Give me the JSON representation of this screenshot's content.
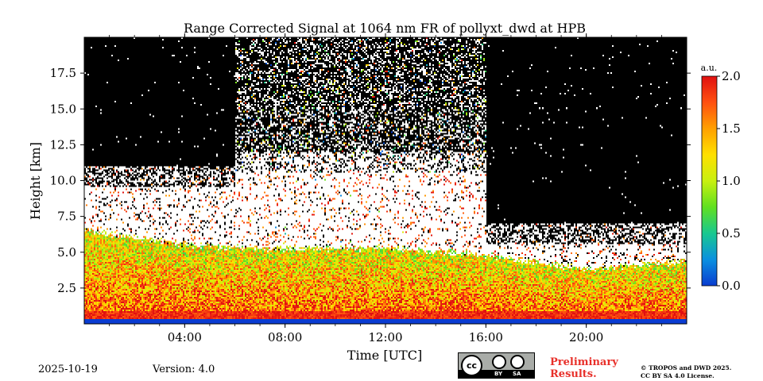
{
  "chart_data": {
    "type": "heatmap",
    "title": "Range Corrected Signal at 1064 nm FR of pollyxt_dwd at HPB",
    "xlabel": "Time [UTC]",
    "ylabel": "Height [km]",
    "xlim": [
      0,
      24
    ],
    "ylim": [
      0,
      20
    ],
    "x_ticks": [
      4,
      8,
      12,
      16,
      20
    ],
    "x_tick_labels": [
      "04:00",
      "08:00",
      "12:00",
      "16:00",
      "20:00"
    ],
    "y_ticks": [
      2.5,
      5.0,
      7.5,
      10.0,
      12.5,
      15.0,
      17.5
    ],
    "y_tick_labels": [
      "2.5",
      "5.0",
      "7.5",
      "10.0",
      "12.5",
      "15.0",
      "17.5"
    ],
    "colorbar": {
      "label": "a.u.",
      "min": 0.0,
      "max": 2.0,
      "ticks": [
        0.0,
        0.5,
        1.0,
        1.5,
        2.0
      ],
      "tick_labels": [
        "0.0",
        "0.5",
        "1.0",
        "1.5",
        "2.0"
      ],
      "colormap": [
        "#0a3cd0",
        "#0a90e0",
        "#18c890",
        "#60e020",
        "#c8f010",
        "#ffe000",
        "#ffa000",
        "#ff5010",
        "#e01010"
      ]
    },
    "background_color": "#000000",
    "saturation_color": "#ffffff",
    "cloud_layers": [
      {
        "description": "white",
        "regions": [
          {
            "t0": 0.0,
            "t1": 6.0,
            "h_top": 11.0,
            "h_bottom": 6.0
          },
          {
            "t0": 6.0,
            "t1": 16.0,
            "h_top": 12.0,
            "h_bottom": 5.5
          },
          {
            "t0": 16.0,
            "t1": 24.0,
            "h_top": 7.0,
            "h_bottom": 4.2
          }
        ]
      }
    ],
    "boundary_layer_top_km": [
      {
        "t": 0,
        "h": 6.5
      },
      {
        "t": 4,
        "h": 5.5
      },
      {
        "t": 8,
        "h": 5.2
      },
      {
        "t": 12,
        "h": 5.3
      },
      {
        "t": 16,
        "h": 4.8
      },
      {
        "t": 20,
        "h": 3.8
      },
      {
        "t": 24,
        "h": 4.4
      }
    ]
  },
  "footer": {
    "date": "2025-10-19",
    "version": "Version: 4.0",
    "preliminary_line1": "Preliminary",
    "preliminary_line2": "Results.",
    "copyright_line1": "© TROPOS and DWD 2025.",
    "copyright_line2": "CC BY SA 4.0 License.",
    "license_badge": {
      "cc": "cc",
      "by": "BY",
      "sa": "SA"
    }
  }
}
